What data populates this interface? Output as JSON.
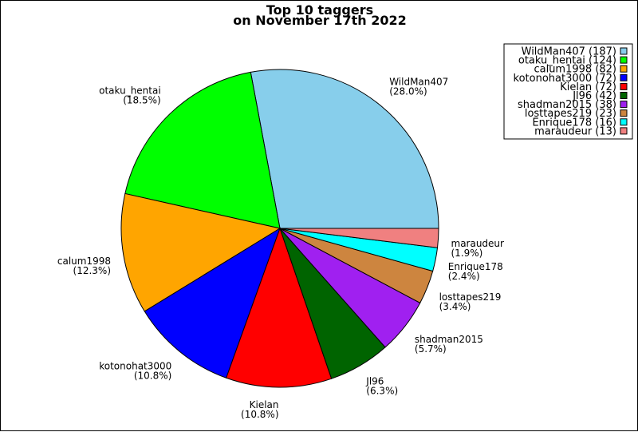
{
  "chart_data": {
    "type": "pie",
    "title": "Top 10 taggers",
    "subtitle": "on November 17th 2022",
    "legend_position": "top-right",
    "slices": [
      {
        "name": "WildMan407",
        "count": 187,
        "percent_label": "(28.0%)",
        "legend_label": "WildMan407 (187)",
        "color": "#87ceeb"
      },
      {
        "name": "otaku_hentai",
        "count": 124,
        "percent_label": "(18.5%)",
        "legend_label": "otaku_hentai (124)",
        "color": "#00ff00"
      },
      {
        "name": "calum1998",
        "count": 82,
        "percent_label": "(12.3%)",
        "legend_label": "calum1998 (82)",
        "color": "#ffa500"
      },
      {
        "name": "kotonohat3000",
        "count": 72,
        "percent_label": "(10.8%)",
        "legend_label": "kotonohat3000 (72)",
        "color": "#0000ff"
      },
      {
        "name": "Kielan",
        "count": 72,
        "percent_label": "(10.8%)",
        "legend_label": "Kielan (72)",
        "color": "#ff0000"
      },
      {
        "name": "Jl96",
        "count": 42,
        "percent_label": "(6.3%)",
        "legend_label": "Jl96 (42)",
        "color": "#006400"
      },
      {
        "name": "shadman2015",
        "count": 38,
        "percent_label": "(5.7%)",
        "legend_label": "shadman2015 (38)",
        "color": "#a020f0"
      },
      {
        "name": "losttapes219",
        "count": 23,
        "percent_label": "(3.4%)",
        "legend_label": "losttapes219 (23)",
        "color": "#cd853f"
      },
      {
        "name": "Enrique178",
        "count": 16,
        "percent_label": "(2.4%)",
        "legend_label": "Enrique178 (16)",
        "color": "#00ffff"
      },
      {
        "name": "maraudeur",
        "count": 13,
        "percent_label": "(1.9%)",
        "legend_label": "maraudeur (13)",
        "color": "#f08080"
      }
    ]
  }
}
